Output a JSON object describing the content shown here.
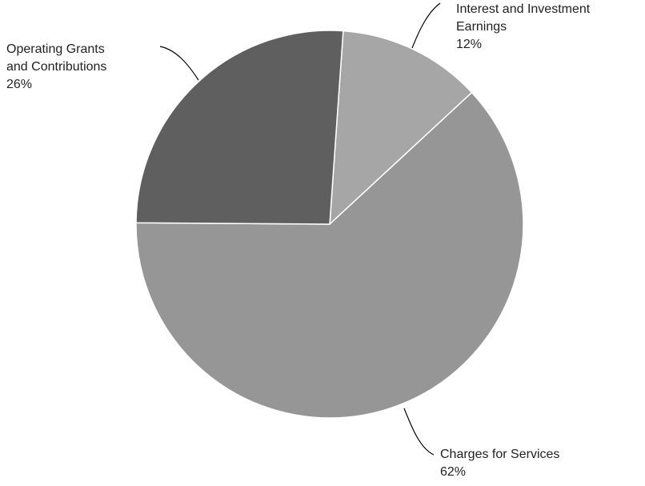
{
  "chart_data": {
    "type": "pie",
    "categories": [
      "Interest and Investment Earnings",
      "Charges for Services",
      "Operating Grants and Contributions"
    ],
    "values": [
      12,
      62,
      26
    ],
    "value_labels": [
      "12%",
      "62%",
      "26%"
    ],
    "colors": [
      "#a6a6a6",
      "#969696",
      "#5f5f5f"
    ]
  }
}
